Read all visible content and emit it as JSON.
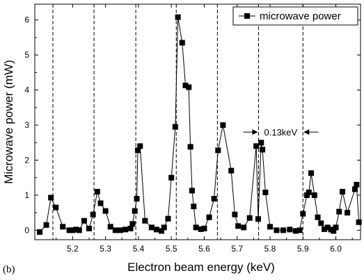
{
  "panel_label": "(b)",
  "chart_data": {
    "type": "line",
    "xlabel": "Electron beam energy (keV)",
    "ylabel": "Microwave power (mW)",
    "xlim": [
      5.085,
      6.075
    ],
    "ylim": [
      -0.27,
      6.45
    ],
    "x_ticks": [
      5.2,
      5.3,
      5.4,
      5.5,
      5.6,
      5.7,
      5.8,
      5.9,
      6.0
    ],
    "x_tick_labels": [
      "5.2",
      "5.3",
      "5.4",
      "5.5",
      "5.6",
      "5.7",
      "5.8",
      "5.9",
      "6.0"
    ],
    "y_ticks": [
      0,
      1,
      2,
      3,
      4,
      5,
      6
    ],
    "y_tick_labels": [
      "0",
      "1",
      "2",
      "3",
      "4",
      "5",
      "6"
    ],
    "legend": {
      "label": "microwave power",
      "position": "top-right"
    },
    "dashed_lines_x": [
      5.14,
      5.265,
      5.392,
      5.515,
      5.64,
      5.765,
      5.9
    ],
    "annotation": {
      "text": "0.13keV",
      "from_x": 5.765,
      "to_x": 5.9,
      "y": 2.8
    },
    "series": [
      {
        "name": "microwave power",
        "x": [
          5.1,
          5.12,
          5.134,
          5.149,
          5.17,
          5.19,
          5.2,
          5.21,
          5.22,
          5.235,
          5.25,
          5.262,
          5.275,
          5.285,
          5.3,
          5.315,
          5.33,
          5.345,
          5.36,
          5.376,
          5.382,
          5.389,
          5.395,
          5.398,
          5.405,
          5.42,
          5.44,
          5.455,
          5.47,
          5.478,
          5.49,
          5.5,
          5.512,
          5.52,
          5.533,
          5.543,
          5.553,
          5.558,
          5.563,
          5.568,
          5.575,
          5.59,
          5.6,
          5.615,
          5.63,
          5.642,
          5.657,
          5.682,
          5.693,
          5.703,
          5.72,
          5.738,
          5.758,
          5.764,
          5.773,
          5.777,
          5.786,
          5.8,
          5.82,
          5.84,
          5.86,
          5.878,
          5.89,
          5.9,
          5.912,
          5.918,
          5.925,
          5.935,
          5.945,
          5.955,
          5.965,
          5.975,
          5.985,
          5.993,
          6.0,
          6.01,
          6.02,
          6.035,
          6.058,
          6.063,
          6.07
        ],
        "values": [
          -0.05,
          0.15,
          0.93,
          0.65,
          0.1,
          0.0,
          0.0,
          0.02,
          0.0,
          0.27,
          0.05,
          0.45,
          1.1,
          0.77,
          0.55,
          0.1,
          0.0,
          0.0,
          0.02,
          0.05,
          0.18,
          0.55,
          0.9,
          2.28,
          2.4,
          0.27,
          0.08,
          0.02,
          -0.02,
          0.08,
          0.33,
          1.5,
          2.95,
          6.08,
          5.35,
          4.13,
          4.08,
          2.38,
          1.13,
          0.68,
          0.08,
          0.03,
          0.05,
          0.37,
          0.9,
          2.28,
          3.0,
          1.7,
          0.45,
          0.12,
          0.08,
          0.35,
          2.4,
          0.32,
          2.5,
          2.3,
          1.08,
          0.1,
          0.0,
          0.0,
          0.02,
          -0.02,
          0.0,
          0.47,
          1.0,
          1.08,
          1.63,
          1.0,
          0.37,
          0.2,
          0.03,
          0.08,
          0.02,
          -0.02,
          0.08,
          0.53,
          1.1,
          0.5,
          1.17,
          1.3,
          0.23
        ]
      }
    ]
  }
}
